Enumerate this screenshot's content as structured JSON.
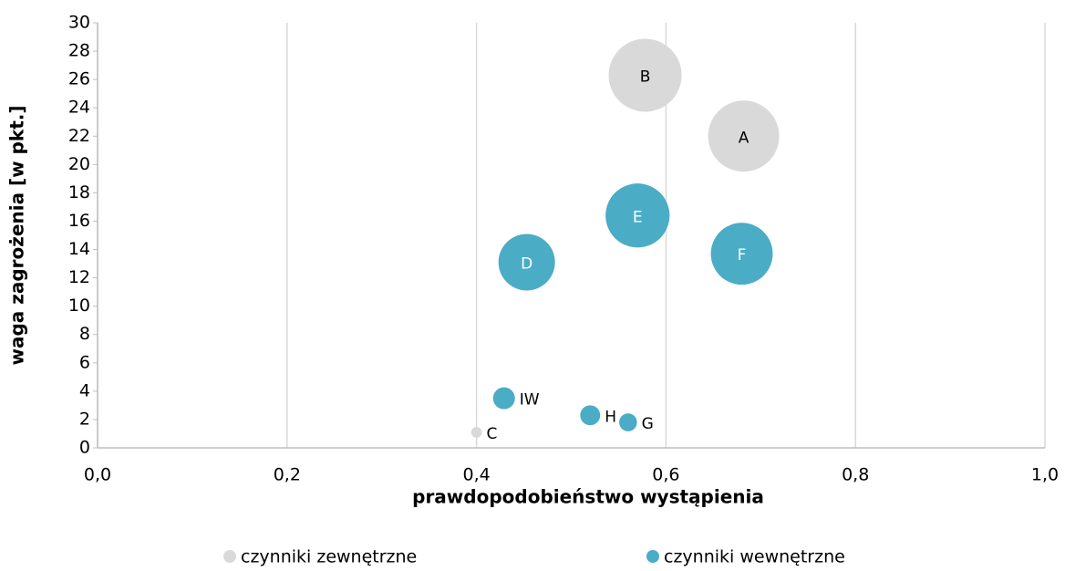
{
  "chart_data": {
    "type": "bubble",
    "xlabel": "prawdopodobieństwo wystąpienia",
    "ylabel": "waga zagrożenia [w pkt.]",
    "xlim": [
      0,
      1
    ],
    "ylim": [
      0,
      30
    ],
    "xticks": [
      {
        "value": 0,
        "label": "0,0"
      },
      {
        "value": 0.2,
        "label": "0,2"
      },
      {
        "value": 0.4,
        "label": "0,4"
      },
      {
        "value": 0.6,
        "label": "0,6"
      },
      {
        "value": 0.8,
        "label": "0,8"
      },
      {
        "value": 1,
        "label": "1,0"
      }
    ],
    "yticks": [
      0,
      2,
      4,
      6,
      8,
      10,
      12,
      14,
      16,
      18,
      20,
      22,
      24,
      26,
      28,
      30
    ],
    "grid": "x",
    "legend": "bottom",
    "series": [
      {
        "name": "czynniki zewnętrzne",
        "color": "#d9d9d9",
        "label_color": "#000000",
        "labels": [
          "B",
          "A",
          "C"
        ],
        "x": [
          0.578,
          0.682,
          0.4
        ],
        "values": [
          26.3,
          22,
          1.1
        ],
        "sizes": [
          100,
          95,
          2.2
        ]
      },
      {
        "name": "czynniki wewnętrzne",
        "color": "#4bacc6",
        "label_color": "#ffffff",
        "labels": [
          "E",
          "F",
          "D",
          "IW",
          "H",
          "G"
        ],
        "x": [
          0.57,
          0.68,
          0.453,
          0.429,
          0.52,
          0.56
        ],
        "values": [
          16.4,
          13.7,
          13.1,
          3.5,
          2.3,
          1.8
        ],
        "sizes": [
          77,
          72,
          60,
          9,
          7.5,
          6
        ]
      }
    ]
  }
}
